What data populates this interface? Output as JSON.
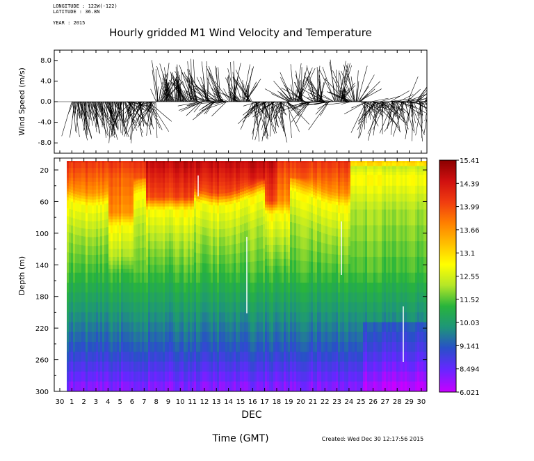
{
  "header": {
    "longitude": "LONGITUDE : 122W(-122)",
    "latitude": "LATITUDE : 36.8N",
    "year": "YEAR : 2015"
  },
  "title": "Hourly gridded M1 Wind Velocity and Temperature",
  "footer": {
    "xlabel": "Time (GMT)",
    "created": "Created: Wed Dec 30 12:17:56 2015"
  },
  "chart_data": [
    {
      "type": "vector-stick",
      "ylabel": "Wind Speed (m/s)",
      "ylim": [
        -10,
        10
      ],
      "yticks": [
        "8.0",
        "4.0",
        "0.0",
        "-4.0",
        "-8.0"
      ],
      "ytick_values": [
        8,
        4,
        0,
        -4,
        -8
      ],
      "x_range_days": [
        0,
        30
      ],
      "stick_color": "#000000"
    },
    {
      "type": "heatmap",
      "ylabel": "Depth (m)",
      "xlabel": "DEC",
      "ylim": [
        300,
        5
      ],
      "yticks": [
        "20",
        "60",
        "100",
        "140",
        "180",
        "220",
        "260",
        "300"
      ],
      "ytick_values": [
        20,
        60,
        100,
        140,
        180,
        220,
        260,
        300
      ],
      "xticks": [
        "30",
        "1",
        "2",
        "3",
        "4",
        "5",
        "6",
        "7",
        "8",
        "9",
        "10",
        "11",
        "12",
        "13",
        "14",
        "15",
        "16",
        "17",
        "18",
        "19",
        "20",
        "21",
        "22",
        "23",
        "24",
        "25",
        "26",
        "27",
        "28",
        "29",
        "30"
      ],
      "colorbar_labels": [
        "15.41",
        "14.39",
        "13.99",
        "13.66",
        "13.1",
        "12.55",
        "11.52",
        "10.03",
        "9.141",
        "8.494",
        "6.021"
      ],
      "colorbar_colors": [
        "#8b0000",
        "#d01010",
        "#f03c10",
        "#ff7f00",
        "#ffbf00",
        "#ffff00",
        "#b4e628",
        "#28b43c",
        "#1e9678",
        "#2850c8",
        "#6428ff",
        "#c800ff"
      ]
    }
  ]
}
